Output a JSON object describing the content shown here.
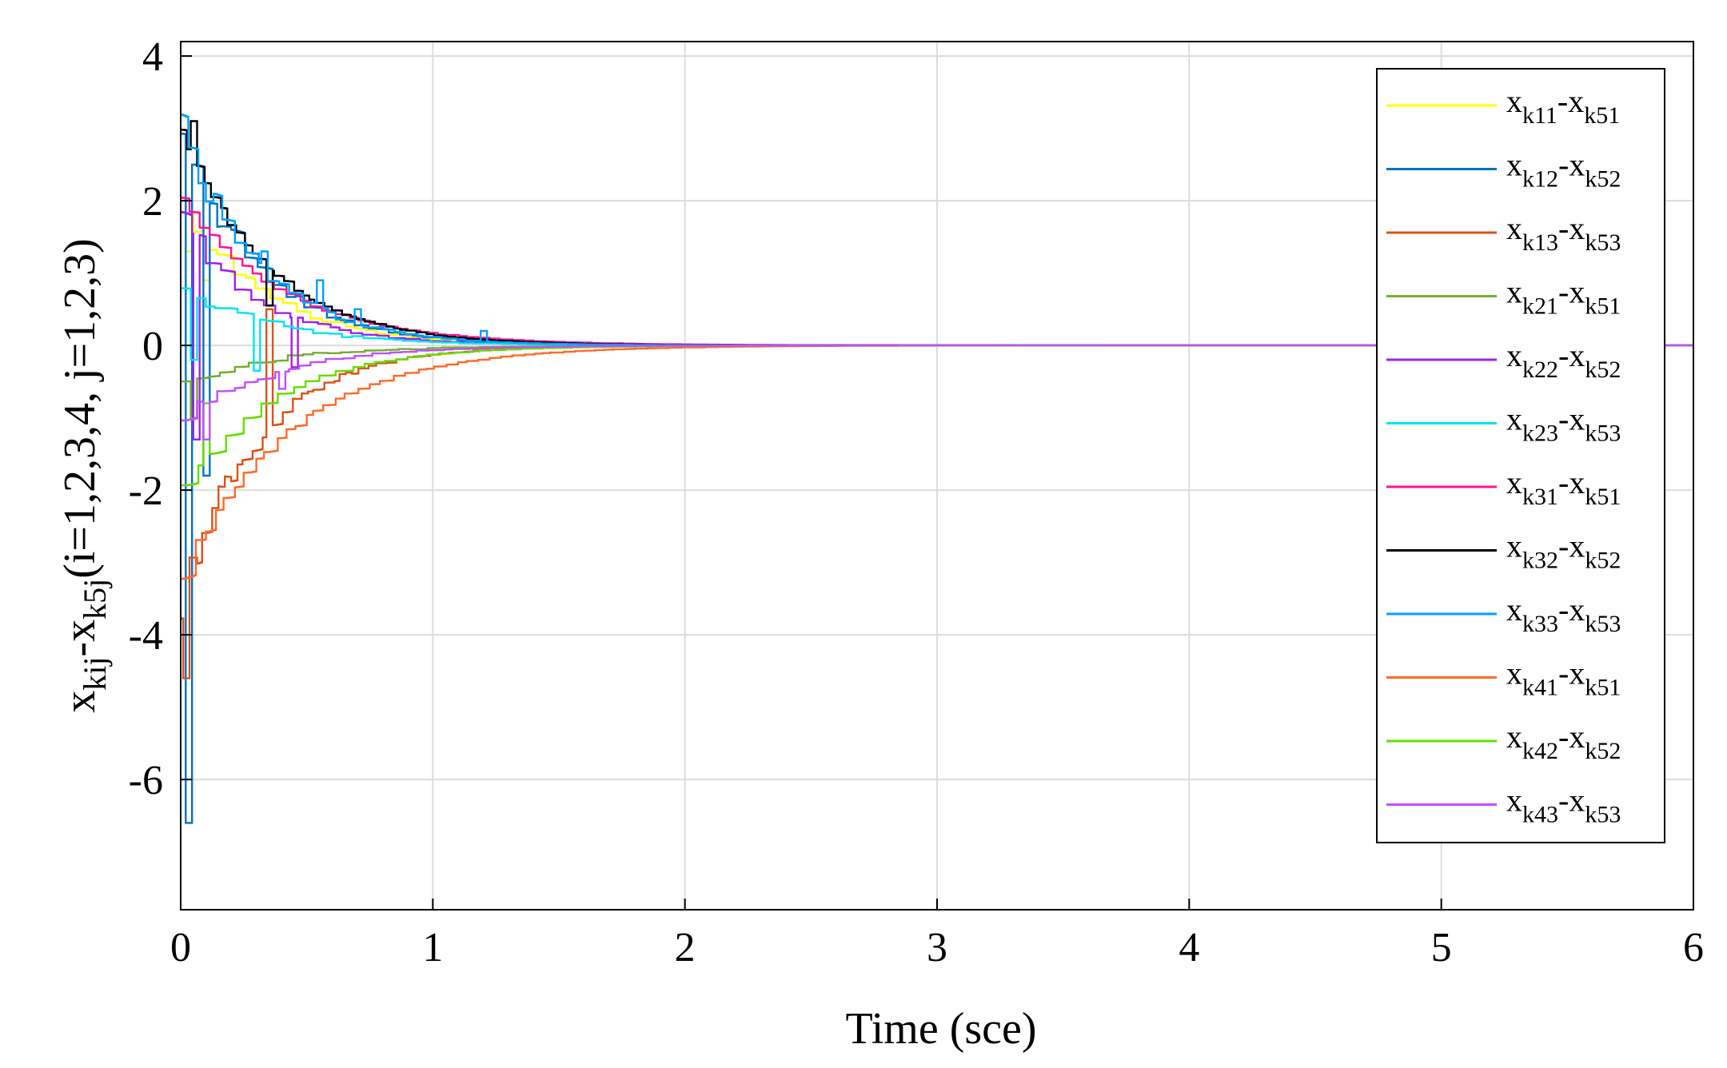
{
  "chart_data": {
    "type": "line",
    "xlabel": "Time (sce)",
    "ylabel": {
      "main": "x",
      "sub1": "kij",
      "mid": "-x",
      "sub2": "k5j",
      "tail": "(i=1,2,3,4, j=1,2,3)"
    },
    "xlim": [
      0,
      6
    ],
    "ylim": [
      -7.8,
      4.2
    ],
    "xticks": [
      0,
      1,
      2,
      3,
      4,
      5,
      6
    ],
    "yticks": [
      4,
      2,
      0,
      -2,
      -4,
      -6
    ],
    "grid": true,
    "legend_position": "top-right",
    "series": [
      {
        "name": "x_k11-x_k51",
        "label": {
          "a": "x",
          "s1": "k11",
          "b": "-x",
          "s2": "k51"
        },
        "color": "#ffff00",
        "start": 2.0,
        "tau": 0.32,
        "hold": 0.045,
        "noise": 0.2,
        "spikes": [
          [
            0.03,
            1.3
          ],
          [
            0.1,
            0.9
          ]
        ]
      },
      {
        "name": "x_k12-x_k52",
        "label": {
          "a": "x",
          "s1": "k12",
          "b": "-x",
          "s2": "k52"
        },
        "color": "#0072bd",
        "start": 2.9,
        "tau": 0.3,
        "hold": 0.04,
        "noise": 0.25,
        "spikes": [
          [
            0.03,
            -6.6
          ],
          [
            0.1,
            -1.8
          ]
        ]
      },
      {
        "name": "x_k13-x_k53",
        "label": {
          "a": "x",
          "s1": "k13",
          "b": "-x",
          "s2": "k53"
        },
        "color": "#d95319",
        "start": -3.5,
        "tau": 0.3,
        "hold": 0.03,
        "noise": 0.3,
        "spikes": [
          [
            0.02,
            -4.6
          ],
          [
            0.35,
            0.5
          ]
        ]
      },
      {
        "name": "x_k21-x_k51",
        "label": {
          "a": "x",
          "s1": "k21",
          "b": "-x",
          "s2": "k51"
        },
        "color": "#77ac30",
        "start": -0.5,
        "tau": 0.38,
        "hold": 0.05,
        "noise": 0.1,
        "spikes": [
          [
            0.05,
            -1.0
          ]
        ]
      },
      {
        "name": "x_k22-x_k52",
        "label": {
          "a": "x",
          "s1": "k22",
          "b": "-x",
          "s2": "k52"
        },
        "color": "#a020f0",
        "start": 1.7,
        "tau": 0.3,
        "hold": 0.05,
        "noise": 0.15,
        "spikes": [
          [
            0.06,
            -1.3
          ],
          [
            0.45,
            -0.3
          ]
        ]
      },
      {
        "name": "x_k23-x_k53",
        "label": {
          "a": "x",
          "s1": "k23",
          "b": "-x",
          "s2": "k53"
        },
        "color": "#00e5ee",
        "start": 0.8,
        "tau": 0.35,
        "hold": 0.05,
        "noise": 0.12,
        "spikes": [
          [
            0.05,
            -0.2
          ],
          [
            0.3,
            -0.35
          ]
        ]
      },
      {
        "name": "x_k31-x_k51",
        "label": {
          "a": "x",
          "s1": "k31",
          "b": "-x",
          "s2": "k51"
        },
        "color": "#ff1493",
        "start": 2.0,
        "tau": 0.4,
        "hold": 0.04,
        "noise": 0.05,
        "spikes": []
      },
      {
        "name": "x_k32-x_k52",
        "label": {
          "a": "x",
          "s1": "k32",
          "b": "-x",
          "s2": "k52"
        },
        "color": "#000000",
        "start": 3.0,
        "tau": 0.33,
        "hold": 0.03,
        "noise": 0.1,
        "spikes": [
          [
            0.05,
            3.1
          ],
          [
            0.35,
            0.55
          ]
        ]
      },
      {
        "name": "x_k33-x_k53",
        "label": {
          "a": "x",
          "s1": "k33",
          "b": "-x",
          "s2": "k53"
        },
        "color": "#00a0ff",
        "start": 3.0,
        "tau": 0.3,
        "hold": 0.04,
        "noise": 0.25,
        "spikes": [
          [
            0.33,
            1.3
          ],
          [
            0.55,
            0.9
          ],
          [
            0.7,
            0.5
          ],
          [
            1.2,
            0.2
          ]
        ]
      },
      {
        "name": "x_k41-x_k51",
        "label": {
          "a": "x",
          "s1": "k41",
          "b": "-x",
          "s2": "k51"
        },
        "color": "#ff6a2a",
        "start": -3.2,
        "tau": 0.42,
        "hold": 0.04,
        "noise": 0.1,
        "spikes": []
      },
      {
        "name": "x_k42-x_k52",
        "label": {
          "a": "x",
          "s1": "k42",
          "b": "-x",
          "s2": "k52"
        },
        "color": "#66dd00",
        "start": -2.0,
        "tau": 0.36,
        "hold": 0.05,
        "noise": 0.1,
        "spikes": [
          [
            0.1,
            -0.8
          ]
        ]
      },
      {
        "name": "x_k43-x_k53",
        "label": {
          "a": "x",
          "s1": "k43",
          "b": "-x",
          "s2": "k53"
        },
        "color": "#c050ff",
        "start": -1.0,
        "tau": 0.36,
        "hold": 0.05,
        "noise": 0.1,
        "spikes": [
          [
            0.1,
            -1.3
          ],
          [
            0.4,
            -0.6
          ]
        ]
      }
    ]
  }
}
